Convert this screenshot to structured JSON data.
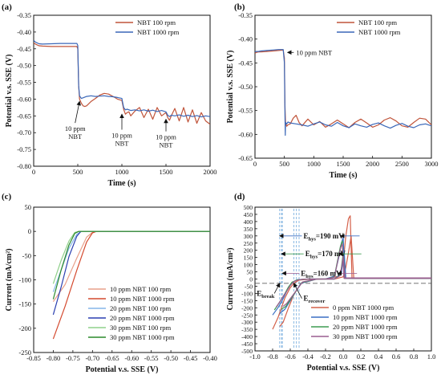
{
  "chart_data": [
    {
      "panel": "(a)",
      "type": "line",
      "xlabel": "Time (s)",
      "ylabel": "Potential v.s. SSE (V)",
      "xlim": [
        0,
        2000
      ],
      "ylim": [
        -0.8,
        -0.35
      ],
      "xticks": [
        0,
        500,
        1000,
        1500,
        2000
      ],
      "yticks": [
        -0.8,
        -0.75,
        -0.7,
        -0.65,
        -0.6,
        -0.55,
        -0.5,
        -0.45,
        -0.4,
        -0.35
      ],
      "ytick_labels": [
        "-0.80",
        "-0.75",
        "-0.70",
        "-0.65",
        "-0.60",
        "-0.55",
        "-0.50",
        "-0.45",
        "-0.40",
        "-0.35"
      ],
      "legend_position": "top-right",
      "series": [
        {
          "name": "NBT  100 rpm",
          "color": "#c0543a",
          "x": [
            0,
            20,
            60,
            100,
            200,
            300,
            400,
            470,
            490,
            500,
            510,
            520,
            540,
            560,
            580,
            600,
            620,
            650,
            700,
            750,
            800,
            850,
            900,
            950,
            1000,
            1020,
            1040,
            1060,
            1080,
            1100,
            1150,
            1200,
            1250,
            1300,
            1350,
            1400,
            1450,
            1500,
            1520,
            1540,
            1560,
            1600,
            1650,
            1700,
            1750,
            1800,
            1850,
            1900,
            1950,
            2000
          ],
          "y": [
            -0.432,
            -0.436,
            -0.441,
            -0.442,
            -0.443,
            -0.443,
            -0.443,
            -0.443,
            -0.443,
            -0.45,
            -0.56,
            -0.6,
            -0.612,
            -0.62,
            -0.622,
            -0.62,
            -0.615,
            -0.607,
            -0.598,
            -0.588,
            -0.583,
            -0.585,
            -0.592,
            -0.6,
            -0.604,
            -0.63,
            -0.645,
            -0.64,
            -0.638,
            -0.65,
            -0.635,
            -0.625,
            -0.655,
            -0.63,
            -0.66,
            -0.625,
            -0.65,
            -0.64,
            -0.655,
            -0.663,
            -0.65,
            -0.628,
            -0.665,
            -0.625,
            -0.668,
            -0.632,
            -0.672,
            -0.64,
            -0.665,
            -0.675
          ]
        },
        {
          "name": "NBT 1000 rpm",
          "color": "#3a67b8",
          "x": [
            0,
            20,
            60,
            100,
            200,
            300,
            400,
            470,
            490,
            500,
            510,
            520,
            540,
            560,
            580,
            600,
            650,
            700,
            750,
            800,
            850,
            900,
            950,
            1000,
            1020,
            1040,
            1060,
            1100,
            1150,
            1200,
            1250,
            1300,
            1350,
            1400,
            1450,
            1500,
            1520,
            1540,
            1560,
            1600,
            1650,
            1700,
            1750,
            1800,
            1850,
            1900,
            1950,
            2000
          ],
          "y": [
            -0.425,
            -0.43,
            -0.435,
            -0.436,
            -0.435,
            -0.434,
            -0.434,
            -0.434,
            -0.434,
            -0.44,
            -0.56,
            -0.59,
            -0.598,
            -0.596,
            -0.594,
            -0.592,
            -0.59,
            -0.592,
            -0.591,
            -0.59,
            -0.592,
            -0.593,
            -0.595,
            -0.598,
            -0.625,
            -0.632,
            -0.63,
            -0.634,
            -0.632,
            -0.635,
            -0.632,
            -0.636,
            -0.633,
            -0.637,
            -0.634,
            -0.638,
            -0.648,
            -0.652,
            -0.648,
            -0.65,
            -0.647,
            -0.651,
            -0.648,
            -0.652,
            -0.649,
            -0.653,
            -0.65,
            -0.652
          ]
        }
      ],
      "annotations": [
        {
          "lines": [
            "10 ppm",
            "NBT"
          ],
          "tx": 470,
          "ty": -0.695,
          "ax": 520,
          "ay": -0.607
        },
        {
          "lines": [
            "10 ppm",
            "NBT"
          ],
          "tx": 1000,
          "ty": -0.715,
          "ax": 1000,
          "ay": -0.645
        },
        {
          "lines": [
            "10 ppm",
            "NBT"
          ],
          "tx": 1500,
          "ty": -0.72,
          "ax": 1500,
          "ay": -0.66
        }
      ]
    },
    {
      "panel": "(b)",
      "type": "line",
      "xlabel": "Time (s)",
      "ylabel": "Potential v.s. SSE (V)",
      "xlim": [
        0,
        3000
      ],
      "ylim": [
        -0.65,
        -0.35
      ],
      "xticks": [
        0,
        500,
        1000,
        1500,
        2000,
        2500,
        3000
      ],
      "yticks": [
        -0.65,
        -0.6,
        -0.55,
        -0.5,
        -0.45,
        -0.4,
        -0.35
      ],
      "ytick_labels": [
        "-0.65",
        "-0.60",
        "-0.55",
        "-0.50",
        "-0.45",
        "-0.40",
        "-0.35"
      ],
      "legend_position": "top-right",
      "series": [
        {
          "name": "NBT  100 rpm",
          "color": "#c0543a",
          "x": [
            0,
            20,
            60,
            100,
            200,
            300,
            400,
            480,
            500,
            510,
            520,
            540,
            560,
            600,
            650,
            700,
            750,
            800,
            900,
            1000,
            1100,
            1200,
            1300,
            1400,
            1500,
            1600,
            1700,
            1800,
            1900,
            2000,
            2100,
            2200,
            2300,
            2400,
            2500,
            2600,
            2700,
            2800,
            2900,
            3000
          ],
          "y": [
            -0.43,
            -0.428,
            -0.427,
            -0.427,
            -0.426,
            -0.425,
            -0.424,
            -0.423,
            -0.44,
            -0.54,
            -0.575,
            -0.583,
            -0.58,
            -0.578,
            -0.566,
            -0.56,
            -0.575,
            -0.582,
            -0.568,
            -0.58,
            -0.573,
            -0.585,
            -0.578,
            -0.57,
            -0.578,
            -0.586,
            -0.575,
            -0.568,
            -0.576,
            -0.585,
            -0.58,
            -0.57,
            -0.565,
            -0.572,
            -0.582,
            -0.585,
            -0.575,
            -0.566,
            -0.568,
            -0.58
          ]
        },
        {
          "name": "NBT 1000 rpm",
          "color": "#3a67b8",
          "x": [
            0,
            20,
            60,
            100,
            200,
            300,
            400,
            480,
            500,
            510,
            515,
            520,
            540,
            560,
            600,
            700,
            800,
            900,
            1000,
            1100,
            1200,
            1300,
            1400,
            1500,
            1600,
            1700,
            1800,
            1900,
            2000,
            2100,
            2200,
            2300,
            2400,
            2500,
            2600,
            2700,
            2800,
            2900,
            3000
          ],
          "y": [
            -0.427,
            -0.426,
            -0.426,
            -0.425,
            -0.424,
            -0.423,
            -0.422,
            -0.422,
            -0.45,
            -0.56,
            -0.602,
            -0.575,
            -0.578,
            -0.574,
            -0.576,
            -0.578,
            -0.58,
            -0.583,
            -0.578,
            -0.574,
            -0.58,
            -0.583,
            -0.575,
            -0.582,
            -0.586,
            -0.578,
            -0.582,
            -0.585,
            -0.579,
            -0.576,
            -0.582,
            -0.587,
            -0.581,
            -0.577,
            -0.583,
            -0.586,
            -0.58,
            -0.578,
            -0.582
          ]
        }
      ],
      "annotations": [
        {
          "text": "10 ppm NBT",
          "tx": 700,
          "ty": -0.428,
          "ax": 500,
          "ay": -0.428
        }
      ]
    },
    {
      "panel": "(c)",
      "type": "line",
      "xlabel": "Potential v.s. SSE (V)",
      "ylabel": "Current (mA/cm²)",
      "xlim": [
        -0.85,
        -0.4
      ],
      "ylim": [
        -250,
        50
      ],
      "xticks": [
        -0.85,
        -0.8,
        -0.75,
        -0.7,
        -0.65,
        -0.6,
        -0.55,
        -0.5,
        -0.45,
        -0.4
      ],
      "xtick_labels": [
        "-0.85",
        "-0.80",
        "-0.75",
        "-0.70",
        "-0.65",
        "-0.60",
        "-0.55",
        "-0.50",
        "-0.45",
        "-0.40"
      ],
      "yticks": [
        -250,
        -200,
        -150,
        -100,
        -50,
        0,
        50
      ],
      "legend_position": "lower-right",
      "series": [
        {
          "name": "10 ppm NBT   100 rpm",
          "color": "#e8a08a",
          "x": [
            -0.8,
            -0.77,
            -0.74,
            -0.715,
            -0.7,
            -0.692,
            -0.68,
            -0.4
          ],
          "y": [
            -145,
            -110,
            -55,
            -12,
            -2,
            0,
            0,
            0
          ]
        },
        {
          "name": "10 ppm NBT  1000 rpm",
          "color": "#d44a2f",
          "x": [
            -0.8,
            -0.77,
            -0.74,
            -0.715,
            -0.7,
            -0.69,
            -0.68,
            -0.4
          ],
          "y": [
            -222,
            -155,
            -80,
            -22,
            -3,
            0,
            0,
            0
          ]
        },
        {
          "name": "20 ppm NBT   100 rpm",
          "color": "#86b6e8",
          "x": [
            -0.8,
            -0.78,
            -0.76,
            -0.74,
            -0.728,
            -0.72,
            -0.4
          ],
          "y": [
            -125,
            -80,
            -35,
            -6,
            0,
            0,
            0
          ]
        },
        {
          "name": "20 ppm NBT  1000 rpm",
          "color": "#2a3fb0",
          "x": [
            -0.8,
            -0.78,
            -0.76,
            -0.74,
            -0.73,
            -0.72,
            -0.4
          ],
          "y": [
            -172,
            -115,
            -52,
            -10,
            0,
            0,
            0
          ]
        },
        {
          "name": "30 ppm NBT   100 rpm",
          "color": "#8fd08a",
          "x": [
            -0.8,
            -0.78,
            -0.76,
            -0.745,
            -0.735,
            -0.725,
            -0.4
          ],
          "y": [
            -108,
            -60,
            -20,
            -2,
            0,
            0,
            0
          ]
        },
        {
          "name": "30 ppm NBT  1000 rpm",
          "color": "#2c8a2c",
          "x": [
            -0.8,
            -0.78,
            -0.76,
            -0.745,
            -0.735,
            -0.725,
            -0.4
          ],
          "y": [
            -140,
            -80,
            -28,
            -4,
            0,
            0,
            0
          ]
        }
      ]
    },
    {
      "panel": "(d)",
      "type": "line",
      "xlabel": "Potential v.s. SSE (V)",
      "ylabel": "Current (mA/cm²)",
      "xlim": [
        -1.0,
        1.0
      ],
      "ylim": [
        -500,
        500
      ],
      "xticks": [
        -1.0,
        -0.8,
        -0.6,
        -0.4,
        -0.2,
        0.0,
        0.2,
        0.4,
        0.6,
        0.8,
        1.0
      ],
      "xtick_labels": [
        "-1.0",
        "-0.8",
        "-0.6",
        "-0.4",
        "-0.2",
        "0.0",
        "0.2",
        "0.4",
        "0.6",
        "0.8",
        "1.0"
      ],
      "yticks": [
        -500,
        -450,
        -400,
        -350,
        -300,
        -250,
        -200,
        -150,
        -100,
        -50,
        0,
        50,
        100,
        150,
        200,
        250,
        300,
        350,
        400,
        450,
        500
      ],
      "legend_position": "lower-right",
      "series": [
        {
          "name": "0 ppm NBT 1000 rpm",
          "color": "#d4604a",
          "x": [
            -0.8,
            -0.74,
            -0.7,
            -0.66,
            -0.6,
            -0.55,
            -0.5,
            -0.4,
            -0.2,
            -0.05,
            0.0,
            0.03,
            0.06,
            0.08,
            0.1,
            1.0,
            1.0,
            0.12,
            0.09,
            0.07,
            0.05,
            0.03,
            0.0,
            -0.1,
            -0.3,
            -0.48,
            -0.56,
            -0.62,
            -0.68,
            -0.72
          ],
          "y": [
            -350,
            -270,
            -200,
            -130,
            -60,
            -25,
            -8,
            -2,
            0,
            20,
            110,
            300,
            420,
            440,
            5,
            5,
            8,
            8,
            300,
            220,
            150,
            80,
            15,
            0,
            0,
            -30,
            -110,
            -200,
            -300,
            -330
          ]
        },
        {
          "name": "10 ppm NBT 1000 rpm",
          "color": "#3a6fc4",
          "x": [
            -0.8,
            -0.74,
            -0.7,
            -0.66,
            -0.62,
            -0.58,
            -0.52,
            -0.4,
            -0.2,
            -0.1,
            -0.05,
            -0.02,
            0.0,
            0.02,
            1.0,
            1.0,
            0.03,
            0.01,
            -0.02,
            -0.1,
            -0.3,
            -0.48,
            -0.54,
            -0.6,
            -0.66,
            -0.72
          ],
          "y": [
            -250,
            -200,
            -160,
            -110,
            -60,
            -25,
            -5,
            0,
            0,
            20,
            150,
            250,
            290,
            5,
            5,
            8,
            8,
            200,
            40,
            0,
            0,
            -30,
            -90,
            -150,
            -210,
            -240
          ]
        },
        {
          "name": "20 ppm NBT 1000 rpm",
          "color": "#3e9b52",
          "x": [
            -0.78,
            -0.74,
            -0.7,
            -0.66,
            -0.62,
            -0.58,
            -0.52,
            -0.4,
            -0.2,
            -0.1,
            -0.06,
            -0.03,
            -0.01,
            0.01,
            1.0,
            1.0,
            0.02,
            0.0,
            -0.03,
            -0.1,
            -0.3,
            -0.47,
            -0.53,
            -0.59,
            -0.65,
            -0.7
          ],
          "y": [
            -215,
            -180,
            -140,
            -100,
            -55,
            -22,
            -5,
            0,
            0,
            15,
            140,
            230,
            265,
            5,
            5,
            8,
            8,
            180,
            30,
            0,
            0,
            -25,
            -80,
            -135,
            -190,
            -210
          ]
        },
        {
          "name": "30 ppm NBT 1000 rpm",
          "color": "#9a5d8f",
          "x": [
            -0.76,
            -0.72,
            -0.68,
            -0.64,
            -0.6,
            -0.56,
            -0.5,
            -0.4,
            -0.2,
            -0.1,
            -0.06,
            -0.03,
            -0.01,
            0.01,
            1.0,
            1.0,
            0.02,
            0.0,
            -0.03,
            -0.1,
            -0.3,
            -0.46,
            -0.52,
            -0.58,
            -0.64,
            -0.68
          ],
          "y": [
            -195,
            -160,
            -120,
            -85,
            -45,
            -18,
            -4,
            0,
            0,
            12,
            130,
            215,
            245,
            5,
            5,
            8,
            8,
            160,
            25,
            0,
            0,
            -20,
            -70,
            -120,
            -170,
            -190
          ]
        }
      ],
      "vlines": [
        -0.72,
        -0.7,
        -0.69,
        -0.56,
        -0.53,
        -0.5
      ],
      "hline": -30,
      "annotations": [
        {
          "main": "E",
          "sub": "hys",
          "rest": "=190 mV",
          "color": "#3a6fc4",
          "tx": -0.45,
          "ty": 300,
          "ax": -0.72,
          "ay": 300,
          "bx": -0.03,
          "by": 300
        },
        {
          "main": "E",
          "sub": "hys",
          "rest": "=170 mV",
          "color": "#3e9b52",
          "tx": -0.43,
          "ty": 175,
          "ax": -0.7,
          "ay": 175,
          "bx": -0.05,
          "by": 175
        },
        {
          "main": "E",
          "sub": "hys",
          "rest": "=160 mV",
          "color": "#9a5d8f",
          "tx": -0.48,
          "ty": 40,
          "ax": -0.69,
          "ay": 40,
          "bx": -0.06,
          "by": 40
        },
        {
          "main": "E",
          "sub": "break",
          "rest": "",
          "color": "#111111",
          "tx": -0.98,
          "ty": -100,
          "ax": -0.72,
          "ay": -30,
          "bx": null,
          "by": null
        },
        {
          "main": "E",
          "sub": "recover",
          "rest": "",
          "color": "#111111",
          "tx": -0.45,
          "ty": -135,
          "ax": -0.56,
          "ay": -30,
          "bx": null,
          "by": null
        }
      ]
    }
  ]
}
